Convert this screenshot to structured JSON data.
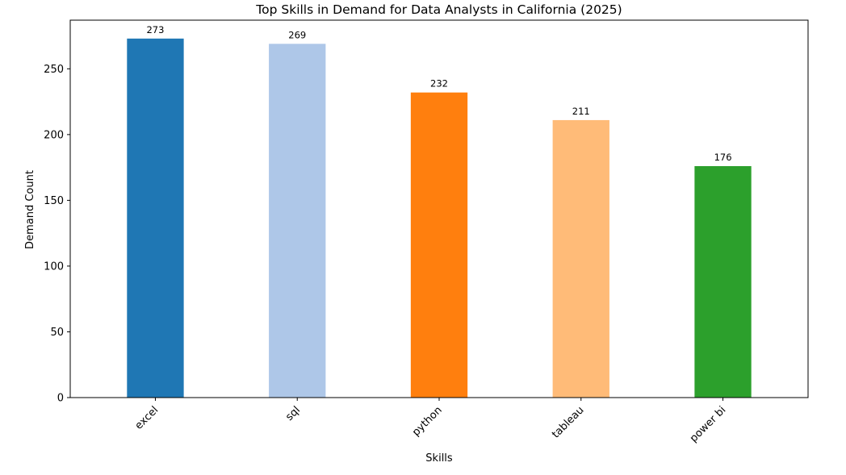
{
  "chart_data": {
    "type": "bar",
    "title": "Top Skills in Demand for Data Analysts in California (2025)",
    "xlabel": "Skills",
    "ylabel": "Demand Count",
    "categories": [
      "excel",
      "sql",
      "python",
      "tableau",
      "power bi"
    ],
    "values": [
      273,
      269,
      232,
      211,
      176
    ],
    "colors": [
      "#1f77b4",
      "#aec7e8",
      "#ff7f0e",
      "#ffbb78",
      "#2ca02c"
    ],
    "ylim": [
      0,
      287
    ],
    "yticks": [
      0,
      50,
      100,
      150,
      200,
      250
    ],
    "grid": false,
    "legend": "none"
  }
}
